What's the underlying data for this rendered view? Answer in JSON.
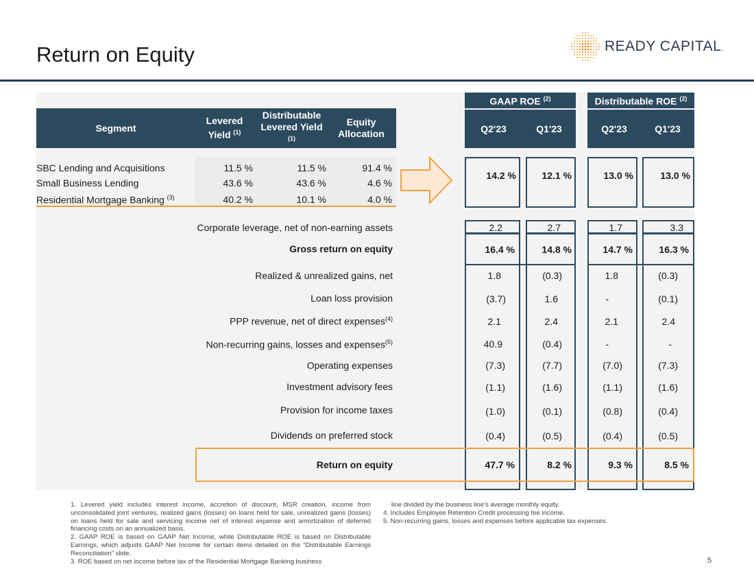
{
  "title": "Return on Equity",
  "logo": {
    "text": "READY CAPITAL",
    "trademark": "."
  },
  "header": {
    "segment": "Segment",
    "levered_yield": "Levered Yield",
    "levered_yield_sup": "(1)",
    "dist_levered_yield": "Distributable Levered Yield",
    "dist_levered_yield_sup": "(1)",
    "equity_allocation": "Equity Allocation",
    "gaap_roe": "GAAP ROE",
    "gaap_roe_sup": "(2)",
    "dist_roe": "Distributable ROE",
    "dist_roe_sup": "(2)",
    "q2": "Q2'23",
    "q1": "Q1'23"
  },
  "segments": [
    {
      "name": "SBC Lending and Acquisitions",
      "sup": "",
      "levered": "11.5 %",
      "distributable": "11.5 %",
      "allocation": "91.4 %"
    },
    {
      "name": "Small Business Lending",
      "sup": "",
      "levered": "43.6 %",
      "distributable": "43.6 %",
      "allocation": "4.6 %"
    },
    {
      "name": "Residential Mortgage Banking",
      "sup": "(3)",
      "levered": "40.2 %",
      "distributable": "10.1 %",
      "allocation": "4.0 %"
    }
  ],
  "segment_roe": {
    "gaap_q2": "14.2 %",
    "gaap_q1": "12.1 %",
    "dist_q2": "13.0 %",
    "dist_q1": "13.0 %"
  },
  "rows": [
    {
      "label": "Corporate leverage, net of non-earning assets",
      "sup": "",
      "gaap_q2": "2.2",
      "gaap_q1": "2.7",
      "dist_q2": "1.7",
      "dist_q1": "3.3"
    },
    {
      "label": "Gross return on equity",
      "sup": "",
      "gaap_q2": "16.4 %",
      "gaap_q1": "14.8 %",
      "dist_q2": "14.7 %",
      "dist_q1": "16.3 %"
    },
    {
      "label": "Realized & unrealized gains, net",
      "sup": "",
      "gaap_q2": "1.8",
      "gaap_q1": "(0.3)",
      "dist_q2": "1.8",
      "dist_q1": "(0.3)"
    },
    {
      "label": "Loan loss provision",
      "sup": "",
      "gaap_q2": "(3.7)",
      "gaap_q1": "1.6",
      "dist_q2": "-",
      "dist_q1": "(0.1)"
    },
    {
      "label": "PPP revenue, net of direct expenses",
      "sup": "(4)",
      "gaap_q2": "2.1",
      "gaap_q1": "2.4",
      "dist_q2": "2.1",
      "dist_q1": "2.4"
    },
    {
      "label": "Non-recurring gains, losses and expenses",
      "sup": "(5)",
      "gaap_q2": "40.9",
      "gaap_q1": "(0.4)",
      "dist_q2": "-",
      "dist_q1": "-"
    },
    {
      "label": "Operating expenses",
      "sup": "",
      "gaap_q2": "(7.3)",
      "gaap_q1": "(7.7)",
      "dist_q2": "(7.0)",
      "dist_q1": "(7.3)"
    },
    {
      "label": "Investment advisory fees",
      "sup": "",
      "gaap_q2": "(1.1)",
      "gaap_q1": "(1.6)",
      "dist_q2": "(1.1)",
      "dist_q1": "(1.6)"
    },
    {
      "label": "Provision for income taxes",
      "sup": "",
      "gaap_q2": "(1.0)",
      "gaap_q1": "(0.1)",
      "dist_q2": "(0.8)",
      "dist_q1": "(0.4)"
    },
    {
      "label": "Dividends on preferred stock",
      "sup": "",
      "gaap_q2": "(0.4)",
      "gaap_q1": "(0.5)",
      "dist_q2": "(0.4)",
      "dist_q1": "(0.5)"
    },
    {
      "label": "Return on equity",
      "sup": "",
      "gaap_q2": "47.7 %",
      "gaap_q1": "8.2 %",
      "dist_q2": "9.3 %",
      "dist_q1": "8.5 %"
    }
  ],
  "footnotes": {
    "fn1": "1. Levered yield includes interest income, accretion of discount, MSR creation, income from unconsolidated joint ventures, realized gains (losses) on loans held for sale, unrealized gains (losses) on loans held for sale and servicing income net of interest expense and amortization of deferred financing costs on an annualized basis.",
    "fn2": "2. GAAP ROE is based on GAAP Net Income, while Distributable ROE is based on Distributable Earnings, which adjusts GAAP Net Income for certain items detailed on the “Distributable Earnings Reconciliation” slide.",
    "fn3": "3. ROE based on net income before tax of the Residential Mortgage Banking business",
    "fn3_cont": "line divided by the business line’s average monthly equity.",
    "fn4": "4. Includes Employee Retention Credit processing fee income.",
    "fn5": "5. Non-recurring gains, losses and expenses before applicable tax expenses."
  },
  "page_number": "5",
  "colors": {
    "header_bg": "#2c4a5e",
    "accent_orange": "#f0a040",
    "title_rule": "#1f3a5f"
  }
}
